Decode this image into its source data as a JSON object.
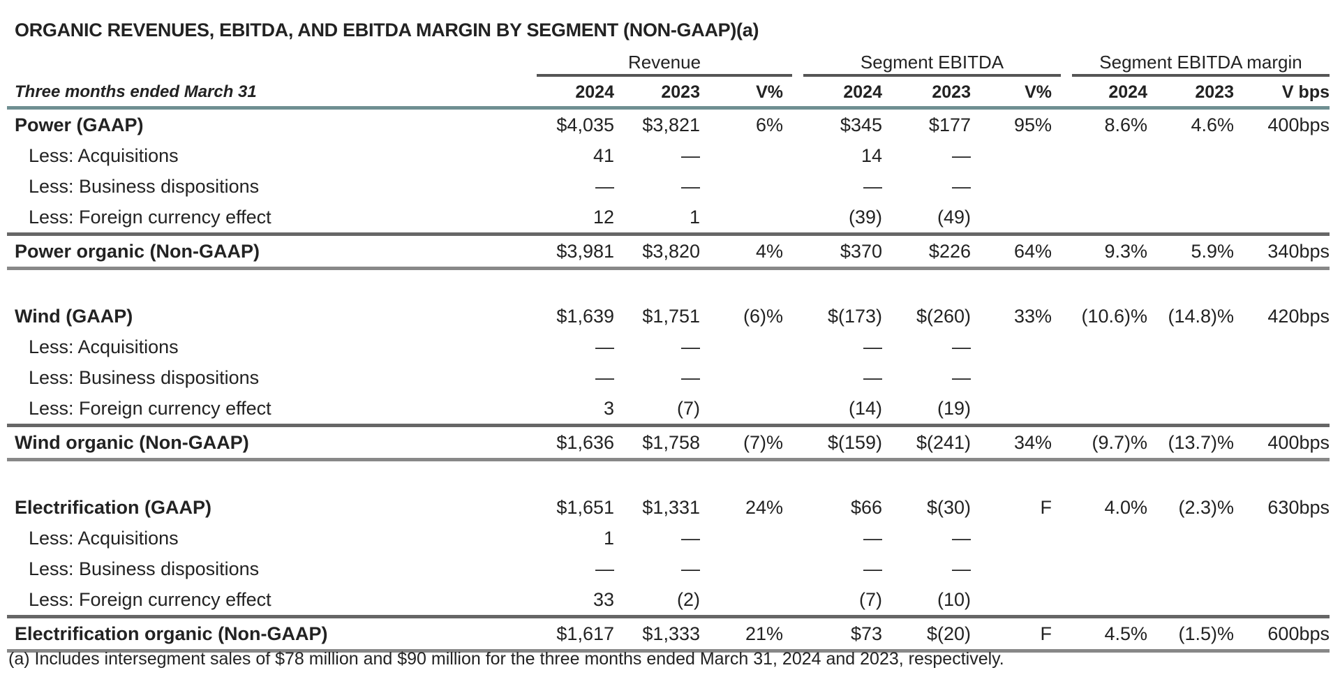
{
  "title": "ORGANIC REVENUES, EBITDA, AND EBITDA MARGIN BY SEGMENT (NON-GAAP)(a)",
  "column_groups": [
    "Revenue",
    "Segment EBITDA",
    "Segment EBITDA margin"
  ],
  "header": {
    "label": "Three months ended March 31",
    "columns": [
      "2024",
      "2023",
      "V%",
      "2024",
      "2023",
      "V%",
      "2024",
      "2023",
      "V bps"
    ]
  },
  "rows": [
    {
      "label": "Power (GAAP)",
      "type": "gaap",
      "values": [
        "$4,035",
        "$3,821",
        "6%",
        "$345",
        "$177",
        "95%",
        "8.6%",
        "4.6%",
        "400bps"
      ]
    },
    {
      "label": "Less: Acquisitions",
      "type": "less",
      "values": [
        "41",
        "—",
        "",
        "14",
        "—",
        "",
        "",
        "",
        ""
      ]
    },
    {
      "label": "Less: Business dispositions",
      "type": "less",
      "values": [
        "—",
        "—",
        "",
        "—",
        "—",
        "",
        "",
        "",
        ""
      ]
    },
    {
      "label": "Less: Foreign currency effect",
      "type": "less-last",
      "values": [
        "12",
        "1",
        "",
        "(39)",
        "(49)",
        "",
        "",
        "",
        ""
      ]
    },
    {
      "label": "Power organic (Non-GAAP)",
      "type": "organic",
      "values": [
        "$3,981",
        "$3,820",
        "4%",
        "$370",
        "$226",
        "64%",
        "9.3%",
        "5.9%",
        "340bps"
      ]
    },
    {
      "type": "blank"
    },
    {
      "label": "Wind (GAAP)",
      "type": "gaap",
      "values": [
        "$1,639",
        "$1,751",
        "(6)%",
        "$(173)",
        "$(260)",
        "33%",
        "(10.6)%",
        "(14.8)%",
        "420bps"
      ]
    },
    {
      "label": "Less: Acquisitions",
      "type": "less",
      "values": [
        "—",
        "—",
        "",
        "—",
        "—",
        "",
        "",
        "",
        ""
      ]
    },
    {
      "label": "Less: Business dispositions",
      "type": "less",
      "values": [
        "—",
        "—",
        "",
        "—",
        "—",
        "",
        "",
        "",
        ""
      ]
    },
    {
      "label": "Less: Foreign currency effect",
      "type": "less-last",
      "values": [
        "3",
        "(7)",
        "",
        "(14)",
        "(19)",
        "",
        "",
        "",
        ""
      ]
    },
    {
      "label": "Wind organic (Non-GAAP)",
      "type": "organic",
      "values": [
        "$1,636",
        "$1,758",
        "(7)%",
        "$(159)",
        "$(241)",
        "34%",
        "(9.7)%",
        "(13.7)%",
        "400bps"
      ]
    },
    {
      "type": "blank"
    },
    {
      "label": "Electrification (GAAP)",
      "type": "gaap",
      "values": [
        "$1,651",
        "$1,331",
        "24%",
        "$66",
        "$(30)",
        "F",
        "4.0%",
        "(2.3)%",
        "630bps"
      ]
    },
    {
      "label": "Less: Acquisitions",
      "type": "less",
      "values": [
        "1",
        "—",
        "",
        "—",
        "—",
        "",
        "",
        "",
        ""
      ]
    },
    {
      "label": "Less: Business dispositions",
      "type": "less",
      "values": [
        "—",
        "—",
        "",
        "—",
        "—",
        "",
        "",
        "",
        ""
      ]
    },
    {
      "label": "Less: Foreign currency effect",
      "type": "less-last",
      "values": [
        "33",
        "(2)",
        "",
        "(7)",
        "(10)",
        "",
        "",
        "",
        ""
      ]
    },
    {
      "label": "Electrification organic (Non-GAAP)",
      "type": "organic",
      "values": [
        "$1,617",
        "$1,333",
        "21%",
        "$73",
        "$(20)",
        "F",
        "4.5%",
        "(1.5)%",
        "600bps"
      ]
    }
  ],
  "footnote": "(a) Includes intersegment sales of $78 million and $90 million for the three months ended March 31, 2024 and 2023, respectively."
}
